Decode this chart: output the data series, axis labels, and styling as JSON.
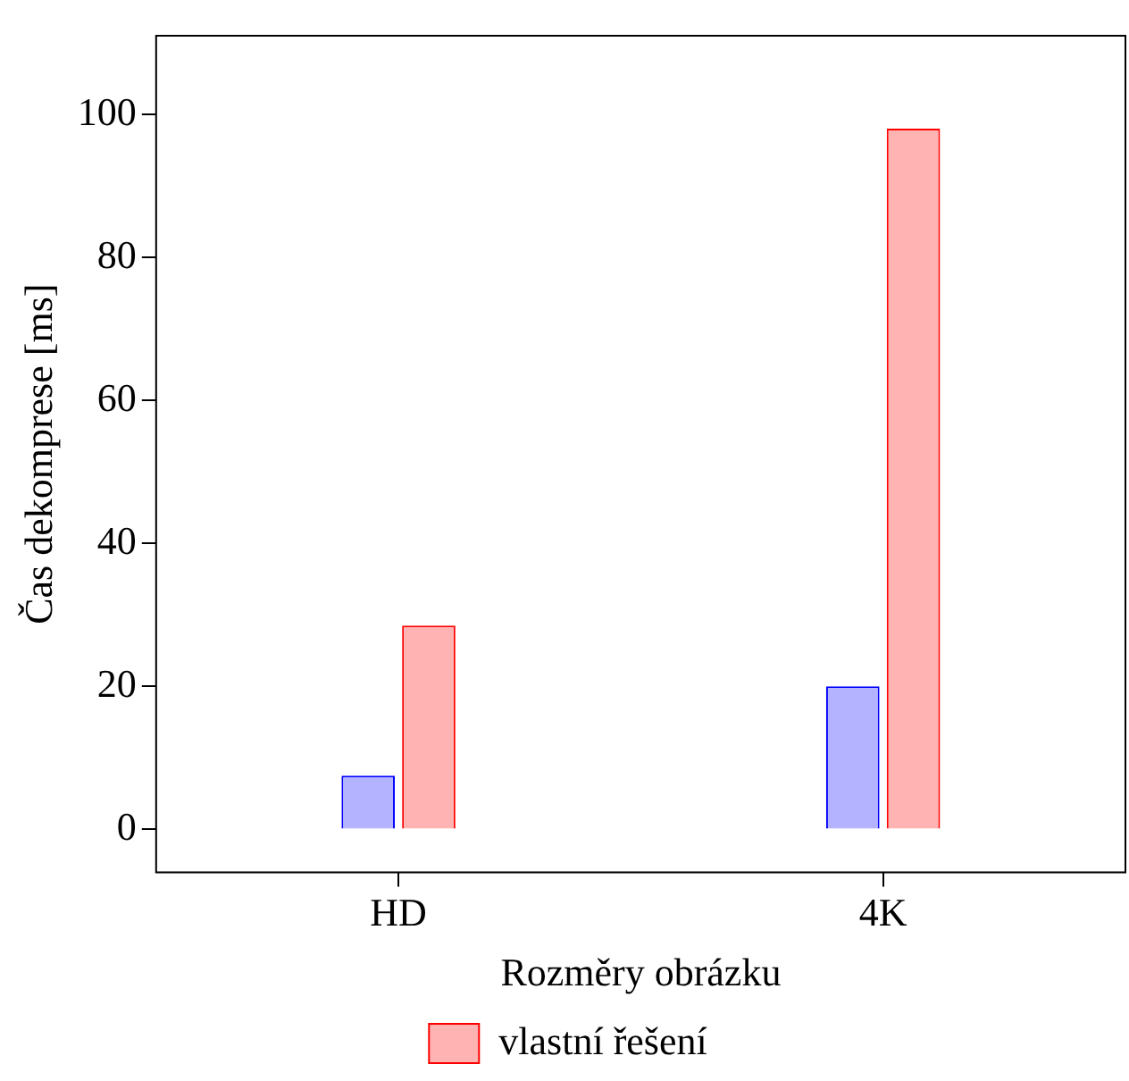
{
  "chart_data": {
    "type": "bar",
    "xlabel": "Rozměry obrázku",
    "ylabel": "Čas dekomprese [ms]",
    "categories": [
      "HD",
      "4K"
    ],
    "series": [
      {
        "color": "#b3b3ff",
        "values": [
          7.5,
          20
        ]
      },
      {
        "name": "vlastní řešení",
        "color": "#ffb3b3",
        "values": [
          28.5,
          98
        ]
      }
    ],
    "ylim": [
      -6,
      111
    ],
    "yticks": [
      0,
      20,
      40,
      60,
      80,
      100
    ],
    "grid": false,
    "legend": "bottom"
  }
}
